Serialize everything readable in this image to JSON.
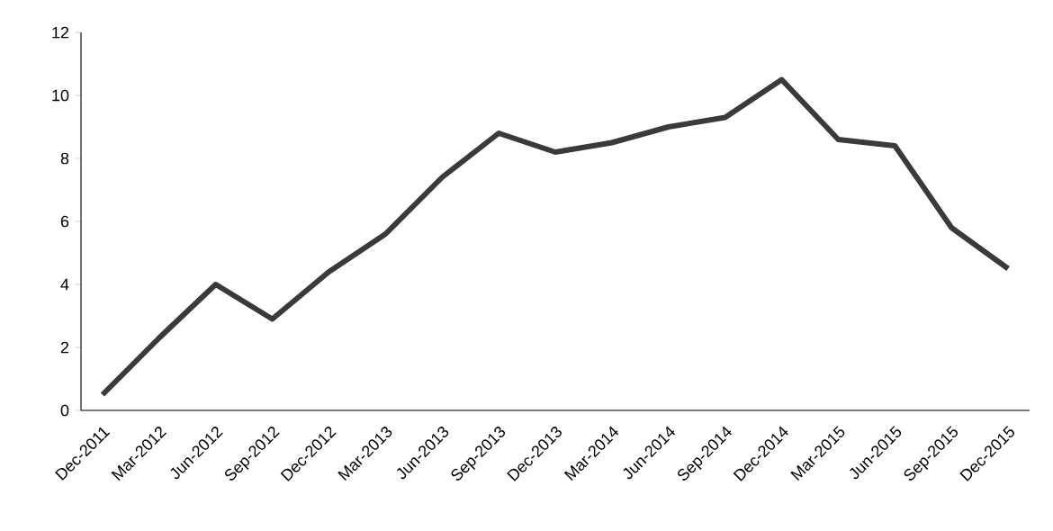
{
  "chart_data": {
    "type": "line",
    "categories": [
      "Dec-2011",
      "Mar-2012",
      "Jun-2012",
      "Sep-2012",
      "Dec-2012",
      "Mar-2013",
      "Jun-2013",
      "Sep-2013",
      "Dec-2013",
      "Mar-2014",
      "Jun-2014",
      "Sep-2014",
      "Dec-2014",
      "Mar-2015",
      "Jun-2015",
      "Sep-2015",
      "Dec-2015"
    ],
    "series": [
      {
        "color": "#3a3a3a",
        "values": [
          0.5,
          2.3,
          4.0,
          2.9,
          4.4,
          5.6,
          7.4,
          8.8,
          8.2,
          8.5,
          9.0,
          9.3,
          10.5,
          8.6,
          8.4,
          5.8,
          4.5
        ]
      }
    ],
    "ylim": [
      0,
      12
    ],
    "yticks": [
      0,
      2,
      4,
      6,
      8,
      10,
      12
    ],
    "marker": "none",
    "line_style": "solid"
  }
}
